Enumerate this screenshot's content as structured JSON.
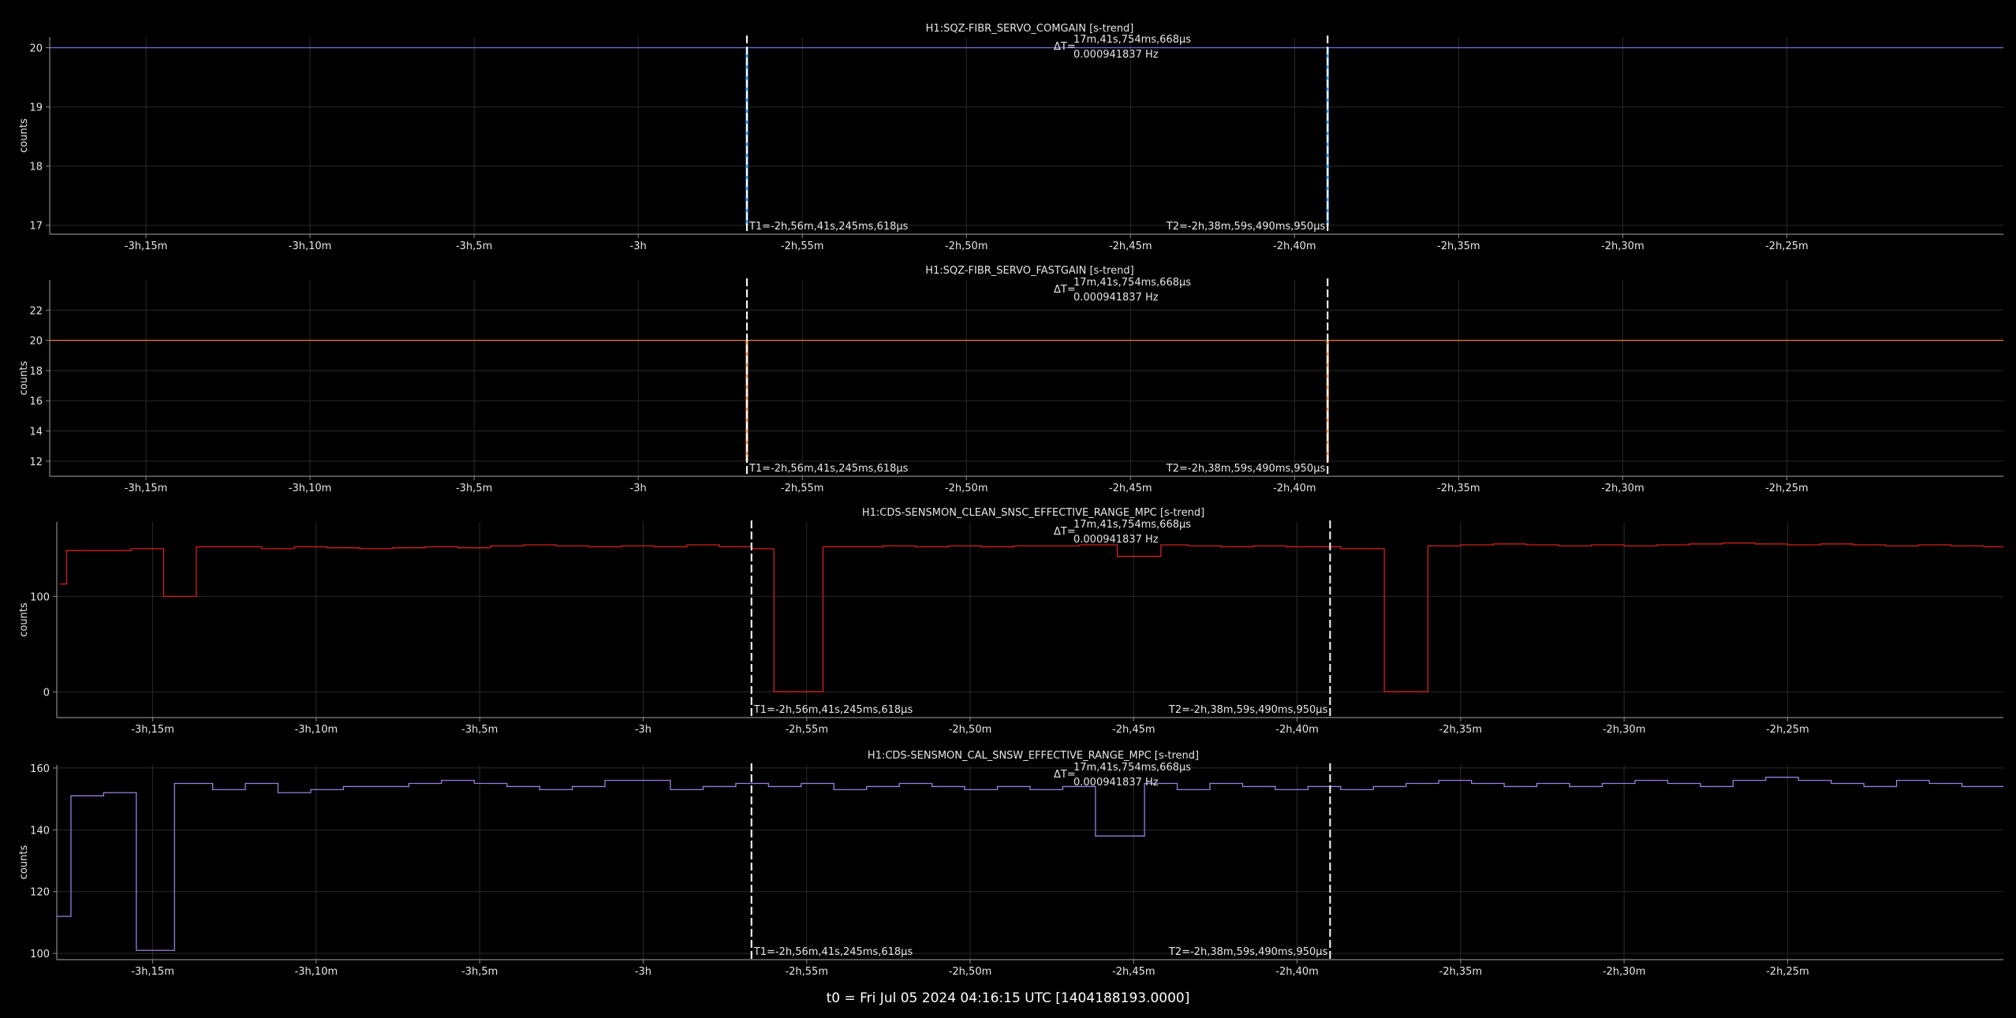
{
  "cursors": {
    "t1_label": "T1=-2h,56m,41s,245ms,618µs",
    "t2_label": "T2=-2h,38m,59s,490ms,950µs",
    "delta_label": "ΔT=",
    "delta_time": "17m,41s,754ms,668µs",
    "delta_freq": "0.000941837 Hz",
    "t1": -10601.245,
    "t2": -9539.49
  },
  "x_axis": {
    "range": [
      -11876,
      -8304
    ],
    "tick_values": [
      -11700,
      -11400,
      -11100,
      -10800,
      -10500,
      -10200,
      -9900,
      -9600,
      -9300,
      -9000,
      -8700
    ],
    "tick_labels": [
      "-3h,15m",
      "-3h,10m",
      "-3h,5m",
      "-3h",
      "-2h,55m",
      "-2h,50m",
      "-2h,45m",
      "-2h,40m",
      "-2h,35m",
      "-2h,30m",
      "-2h,25m"
    ]
  },
  "footer": "t0 = Fri Jul 05 2024 04:16:15 UTC [1404188193.0000]",
  "colors": {
    "background": "#000000",
    "grid": "#2a2a2a",
    "axis": "#888888",
    "text": "#e6e6e6",
    "cursor": "#ffffff"
  },
  "chart_data": [
    {
      "type": "line",
      "title": "H1:SQZ-FIBR_SERVO_COMGAIN [s-trend]",
      "ylabel": "counts",
      "color": "#6f74d8",
      "ylim": [
        16.85,
        20.18
      ],
      "yticks": [
        17,
        18,
        19,
        20
      ],
      "x": [
        -11876,
        -8304
      ],
      "y": [
        20,
        20
      ],
      "spikes": [
        {
          "x": -10601.2,
          "from": 20,
          "to": 17.0,
          "color": "#3fa9f5"
        },
        {
          "x": -9539.5,
          "from": 20,
          "to": 17.0,
          "color": "#3fa9f5"
        }
      ]
    },
    {
      "type": "line",
      "title": "H1:SQZ-FIBR_SERVO_FASTGAIN [s-trend]",
      "ylabel": "counts",
      "color": "#f07a3a",
      "ylim": [
        11,
        24
      ],
      "yticks": [
        12,
        14,
        16,
        18,
        20,
        22
      ],
      "x": [
        -11876,
        -8304
      ],
      "y": [
        20,
        20
      ],
      "spikes": [
        {
          "x": -10601.2,
          "from": 20,
          "to": 12,
          "color": "#f5a35a"
        },
        {
          "x": -9539.5,
          "from": 20,
          "to": 12,
          "color": "#f5a35a"
        }
      ]
    },
    {
      "type": "line",
      "title": "H1:CDS-SENSMON_CLEAN_SNSC_EFFECTIVE_RANGE_MPC [s-trend]",
      "ylabel": "counts",
      "color": "#d42020",
      "ylim": [
        -27,
        178
      ],
      "yticks": [
        0,
        100
      ],
      "x": [
        -11870,
        -11862,
        -11858,
        -11860,
        -11740,
        -11680,
        -11620,
        -11560,
        -11500,
        -11440,
        -11380,
        -11320,
        -11260,
        -11200,
        -11140,
        -11080,
        -11020,
        -10960,
        -10900,
        -10840,
        -10780,
        -10720,
        -10660,
        -10620,
        -10600,
        -10570,
        -10560,
        -10480,
        -10470,
        -10420,
        -10360,
        -10300,
        -10240,
        -10180,
        -10120,
        -10060,
        -10000,
        -9960,
        -9930,
        -9880,
        -9850,
        -9830,
        -9800,
        -9740,
        -9680,
        -9620,
        -9560,
        -9520,
        -9490,
        -9440,
        -9420,
        -9360,
        -9300,
        -9240,
        -9180,
        -9120,
        -9060,
        -9000,
        -8940,
        -8880,
        -8820,
        -8760,
        -8700,
        -8640,
        -8580,
        -8520,
        -8460,
        -8400,
        -8340,
        -8304
      ],
      "y": [
        113,
        113,
        148,
        148,
        150,
        100,
        152,
        152,
        150,
        152,
        151,
        150,
        151,
        152,
        151,
        153,
        154,
        153,
        152,
        153,
        152,
        154,
        152,
        152,
        150,
        150,
        0,
        0,
        152,
        152,
        153,
        152,
        153,
        152,
        153,
        153,
        154,
        154,
        142,
        142,
        154,
        154,
        153,
        152,
        153,
        152,
        152,
        150,
        150,
        0,
        0,
        153,
        154,
        155,
        154,
        153,
        154,
        153,
        154,
        155,
        156,
        155,
        154,
        155,
        154,
        153,
        154,
        153,
        152,
        152
      ]
    },
    {
      "type": "line",
      "title": "H1:CDS-SENSMON_CAL_SNSW_EFFECTIVE_RANGE_MPC [s-trend]",
      "ylabel": "counts",
      "color": "#9a7ee0",
      "ylim": [
        98,
        161
      ],
      "yticks": [
        100,
        120,
        140,
        160
      ],
      "x": [
        -11876,
        -11856,
        -11850,
        -11790,
        -11730,
        -11722,
        -11660,
        -11650,
        -11590,
        -11530,
        -11470,
        -11410,
        -11350,
        -11290,
        -11230,
        -11170,
        -11110,
        -11050,
        -10990,
        -10930,
        -10870,
        -10810,
        -10750,
        -10690,
        -10630,
        -10570,
        -10510,
        -10450,
        -10390,
        -10330,
        -10270,
        -10210,
        -10150,
        -10090,
        -10030,
        -9970,
        -9940,
        -9880,
        -9820,
        -9760,
        -9700,
        -9640,
        -9580,
        -9520,
        -9460,
        -9400,
        -9340,
        -9280,
        -9220,
        -9160,
        -9100,
        -9040,
        -8980,
        -8920,
        -8860,
        -8800,
        -8740,
        -8680,
        -8620,
        -8560,
        -8500,
        -8440,
        -8380,
        -8320,
        -8304
      ],
      "y": [
        112,
        112,
        151,
        152,
        101,
        101,
        155,
        155,
        153,
        155,
        152,
        153,
        154,
        154,
        155,
        156,
        155,
        154,
        153,
        154,
        156,
        156,
        153,
        154,
        155,
        154,
        155,
        153,
        154,
        155,
        154,
        153,
        154,
        153,
        154,
        138,
        138,
        155,
        153,
        155,
        154,
        153,
        154,
        153,
        154,
        155,
        156,
        155,
        154,
        155,
        154,
        155,
        156,
        155,
        154,
        156,
        157,
        156,
        155,
        154,
        156,
        155,
        154,
        154,
        154
      ]
    }
  ]
}
